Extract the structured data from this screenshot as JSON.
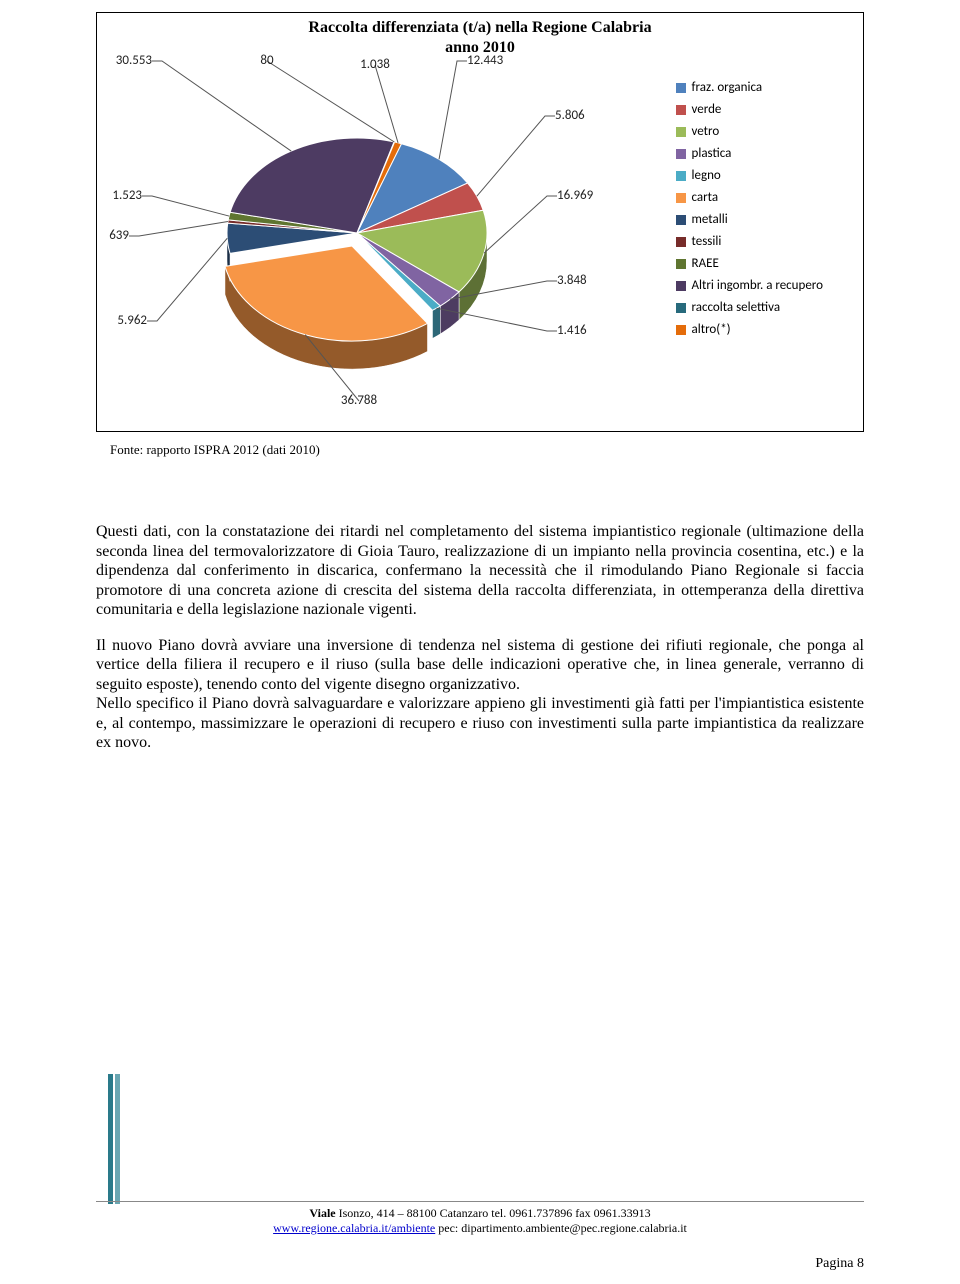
{
  "chart": {
    "title": "Raccolta differenziata (t/a) nella Regione Calabria",
    "subtitle": "anno 2010",
    "type": "pie",
    "slices": [
      {
        "label": "fraz. organica",
        "value": 12443,
        "display": "12.443",
        "color": "#4f81bd"
      },
      {
        "label": "verde",
        "value": 5806,
        "display": "5.806",
        "color": "#c0504d"
      },
      {
        "label": "vetro",
        "value": 16969,
        "display": "16.969",
        "color": "#9bbb59"
      },
      {
        "label": "plastica",
        "value": 3848,
        "display": "3.848",
        "color": "#8064a2"
      },
      {
        "label": "legno",
        "value": 1416,
        "display": "1.416",
        "color": "#4bacc6"
      },
      {
        "label": "carta",
        "value": 36788,
        "display": "36.788",
        "color": "#f79646"
      },
      {
        "label": "metalli",
        "value": 5962,
        "display": "5.962",
        "color": "#2c4d75"
      },
      {
        "label": "tessili",
        "value": 639,
        "display": "639",
        "color": "#772c2a"
      },
      {
        "label": "RAEE",
        "value": 1523,
        "display": "1.523",
        "color": "#5f7530"
      },
      {
        "label": "Altri ingombr. a recupero",
        "value": 30553,
        "display": "30.553",
        "color": "#4d3b62"
      },
      {
        "label": "raccolta selettiva",
        "value": 80,
        "display": "80",
        "color": "#276a7c"
      },
      {
        "label": "altro(*)",
        "value": 1038,
        "display": "1.038",
        "color": "#e46c0a"
      }
    ],
    "value_fontsize": 13,
    "legend_fontsize": 13,
    "title_fontsize": 16,
    "start_angle_deg": -70,
    "background_color": "#ffffff",
    "border_color": "#000000"
  },
  "source_line": "Fonte: rapporto ISPRA 2012 (dati 2010)",
  "paragraphs": {
    "p1": "Questi dati, con la constatazione dei ritardi nel completamento del sistema impiantistico regionale (ultimazione della seconda linea del termovalorizzatore di Gioia Tauro, realizzazione di un impianto nella provincia cosentina, etc.) e la dipendenza dal conferimento in discarica, confermano la necessità che il rimodulando Piano Regionale si faccia promotore di una concreta azione di crescita del sistema della raccolta differenziata, in ottemperanza della direttiva comunitaria e della legislazione nazionale vigenti.",
    "p2": "Il nuovo Piano dovrà avviare una inversione di tendenza nel sistema di gestione dei rifiuti regionale, che ponga al vertice della filiera il recupero e il riuso (sulla base delle indicazioni operative che, in linea generale, verranno di seguito esposte), tenendo conto del vigente disegno organizzativo.",
    "p3": "Nello specifico il Piano dovrà salvaguardare e valorizzare appieno gli investimenti già fatti per l'impiantistica esistente e, al contempo, massimizzare le operazioni di recupero e riuso con investimenti sulla parte impiantistica da realizzare ex novo."
  },
  "footer": {
    "line1_prefix": "Viale ",
    "line1_rest": "Isonzo, 414 – 88100 Catanzaro tel. 0961.737896  fax 0961.33913",
    "link": "www.regione.calabria.it/ambiente",
    "line2_rest": "  pec:  dipartimento.ambiente@pec.regione.calabria.it"
  },
  "page_label": "Pagina 8"
}
